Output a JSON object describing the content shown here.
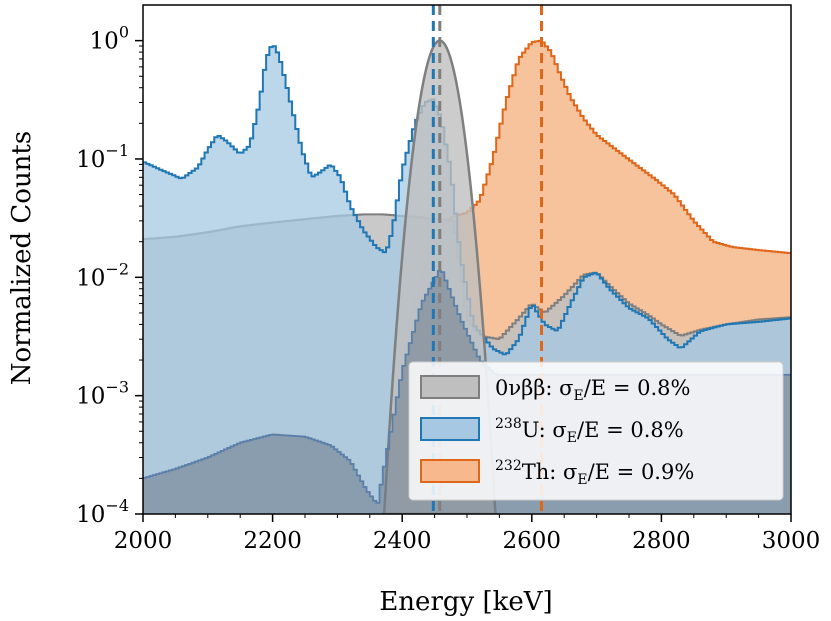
{
  "chart_data": {
    "type": "area",
    "xlabel": "Energy [keV]",
    "ylabel": "Normalized Counts",
    "xlim": [
      2000,
      3000
    ],
    "ylim": [
      0.0001,
      2
    ],
    "yscale": "log",
    "grid": false,
    "legend_position": "bottom-right",
    "x_ticks": [
      2000,
      2200,
      2400,
      2600,
      2800,
      3000
    ],
    "x_tick_labels": [
      "2000",
      "2200",
      "2400",
      "2600",
      "2800",
      "3000"
    ],
    "y_ticks": [
      0.0001,
      0.001,
      0.01,
      0.1,
      1
    ],
    "y_tick_labels": [
      {
        "base": "10",
        "exp": "−4"
      },
      {
        "base": "10",
        "exp": "−3"
      },
      {
        "base": "10",
        "exp": "−2"
      },
      {
        "base": "10",
        "exp": "−1"
      },
      {
        "base": "10",
        "exp": "0"
      }
    ],
    "series": [
      {
        "name": "0νββ: σE/E = 0.8%",
        "legend": {
          "pre": "",
          "label": "0νββ: σ",
          "sub": "E",
          "post": "/E = 0.8%"
        },
        "color": "#7f7f7f",
        "fill": "#bfbfbf",
        "points": [
          [
            2000,
            0.021
          ],
          [
            2050,
            0.022
          ],
          [
            2100,
            0.024
          ],
          [
            2150,
            0.027
          ],
          [
            2200,
            0.029
          ],
          [
            2250,
            0.031
          ],
          [
            2300,
            0.033
          ],
          [
            2340,
            0.034
          ],
          [
            2370,
            0.034
          ],
          [
            2400,
            0.033
          ],
          [
            2430,
            0.032
          ],
          [
            2460,
            0.031
          ],
          [
            2480,
            0.03
          ],
          [
            2500,
            0.0045
          ],
          [
            2520,
            0.0032
          ],
          [
            2550,
            0.003
          ],
          [
            2580,
            0.0045
          ],
          [
            2600,
            0.006
          ],
          [
            2620,
            0.005
          ],
          [
            2650,
            0.007
          ],
          [
            2680,
            0.0105
          ],
          [
            2700,
            0.011
          ],
          [
            2720,
            0.0085
          ],
          [
            2750,
            0.006
          ],
          [
            2780,
            0.0048
          ],
          [
            2800,
            0.004
          ],
          [
            2830,
            0.0032
          ],
          [
            2860,
            0.0036
          ],
          [
            2900,
            0.004
          ],
          [
            2950,
            0.0044
          ],
          [
            3000,
            0.0046
          ]
        ],
        "peak_center": 2458,
        "peak_sigma": 20,
        "peak_height": 1.0,
        "marker_line": 2458
      },
      {
        "name": "238U: σE/E = 0.8%",
        "legend": {
          "pre": "238",
          "label": "U: σ",
          "sub": "E",
          "post": "/E = 0.8%"
        },
        "color": "#1f77b4",
        "fill": "#a6c8e3",
        "points": [
          [
            2000,
            0.095
          ],
          [
            2030,
            0.08
          ],
          [
            2060,
            0.068
          ],
          [
            2085,
            0.085
          ],
          [
            2100,
            0.12
          ],
          [
            2115,
            0.16
          ],
          [
            2130,
            0.14
          ],
          [
            2150,
            0.11
          ],
          [
            2165,
            0.13
          ],
          [
            2180,
            0.3
          ],
          [
            2190,
            0.7
          ],
          [
            2200,
            0.95
          ],
          [
            2210,
            0.75
          ],
          [
            2225,
            0.35
          ],
          [
            2245,
            0.12
          ],
          [
            2260,
            0.07
          ],
          [
            2270,
            0.075
          ],
          [
            2290,
            0.09
          ],
          [
            2305,
            0.07
          ],
          [
            2320,
            0.04
          ],
          [
            2340,
            0.025
          ],
          [
            2360,
            0.018
          ],
          [
            2375,
            0.016
          ],
          [
            2385,
            0.025
          ],
          [
            2400,
            0.08
          ],
          [
            2420,
            0.2
          ],
          [
            2435,
            0.3
          ],
          [
            2448,
            0.32
          ],
          [
            2460,
            0.22
          ],
          [
            2475,
            0.08
          ],
          [
            2490,
            0.015
          ],
          [
            2510,
            0.004
          ],
          [
            2540,
            0.0025
          ],
          [
            2560,
            0.0022
          ],
          [
            2580,
            0.003
          ],
          [
            2600,
            0.006
          ],
          [
            2620,
            0.004
          ],
          [
            2640,
            0.0035
          ],
          [
            2660,
            0.006
          ],
          [
            2680,
            0.01
          ],
          [
            2700,
            0.011
          ],
          [
            2720,
            0.008
          ],
          [
            2750,
            0.0055
          ],
          [
            2780,
            0.0045
          ],
          [
            2810,
            0.003
          ],
          [
            2830,
            0.0025
          ],
          [
            2860,
            0.0035
          ],
          [
            2900,
            0.004
          ],
          [
            2950,
            0.0042
          ],
          [
            3000,
            0.0045
          ]
        ],
        "marker_line": 2448
      },
      {
        "name": "232Th: σE/E = 0.9%",
        "legend": {
          "pre": "232",
          "label": "Th: σ",
          "sub": "E",
          "post": "/E = 0.9%"
        },
        "color": "#e0661a",
        "fill": "#f6b88c",
        "points": [
          [
            2000,
            0.0002
          ],
          [
            2050,
            0.00024
          ],
          [
            2100,
            0.0003
          ],
          [
            2150,
            0.0004
          ],
          [
            2200,
            0.00047
          ],
          [
            2250,
            0.00045
          ],
          [
            2290,
            0.00038
          ],
          [
            2320,
            0.00028
          ],
          [
            2345,
            0.00016
          ],
          [
            2362,
            0.00012
          ],
          [
            2375,
            0.0003
          ],
          [
            2400,
            0.0016
          ],
          [
            2420,
            0.006
          ],
          [
            2440,
            0.015
          ],
          [
            2460,
            0.028
          ],
          [
            2480,
            0.033
          ],
          [
            2500,
            0.035
          ],
          [
            2520,
            0.045
          ],
          [
            2540,
            0.1
          ],
          [
            2560,
            0.3
          ],
          [
            2580,
            0.7
          ],
          [
            2600,
            0.97
          ],
          [
            2615,
            1.0
          ],
          [
            2630,
            0.8
          ],
          [
            2645,
            0.5
          ],
          [
            2660,
            0.33
          ],
          [
            2680,
            0.22
          ],
          [
            2700,
            0.16
          ],
          [
            2730,
            0.12
          ],
          [
            2760,
            0.09
          ],
          [
            2790,
            0.068
          ],
          [
            2820,
            0.05
          ],
          [
            2850,
            0.03
          ],
          [
            2880,
            0.02
          ],
          [
            2910,
            0.018
          ],
          [
            2950,
            0.017
          ],
          [
            3000,
            0.016
          ]
        ],
        "low_tail": [
          [
            2000,
            0.0002
          ],
          [
            2050,
            0.00024
          ],
          [
            2100,
            0.0003
          ],
          [
            2150,
            0.0004
          ],
          [
            2200,
            0.00047
          ],
          [
            2250,
            0.00045
          ],
          [
            2290,
            0.00038
          ],
          [
            2320,
            0.00028
          ],
          [
            2345,
            0.00016
          ],
          [
            2362,
            0.00012
          ],
          [
            2375,
            0.0003
          ],
          [
            2400,
            0.0016
          ],
          [
            2430,
            0.006
          ],
          [
            2460,
            0.012
          ],
          [
            2490,
            0.0045
          ],
          [
            2520,
            0.002
          ],
          [
            2545,
            0.0015
          ],
          [
            3000,
            0.0015
          ]
        ],
        "marker_line": 2615
      }
    ]
  }
}
